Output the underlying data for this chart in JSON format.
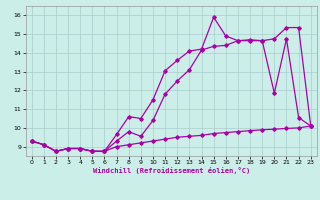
{
  "xlabel": "Windchill (Refroidissement éolien,°C)",
  "x_ticks": [
    0,
    1,
    2,
    3,
    4,
    5,
    6,
    7,
    8,
    9,
    10,
    11,
    12,
    13,
    14,
    15,
    16,
    17,
    18,
    19,
    20,
    21,
    22,
    23
  ],
  "xlim": [
    -0.5,
    23.5
  ],
  "ylim": [
    8.5,
    16.5
  ],
  "y_ticks": [
    9,
    10,
    11,
    12,
    13,
    14,
    15,
    16
  ],
  "bg_color": "#cceee8",
  "line_color": "#aa00aa",
  "grid_color": "#aacccc",
  "line1_x": [
    0,
    1,
    2,
    3,
    4,
    5,
    6,
    7,
    8,
    9,
    10,
    11,
    12,
    13,
    14,
    15,
    16,
    17,
    18,
    19,
    20,
    21,
    22,
    23
  ],
  "line1_y": [
    9.3,
    9.1,
    8.75,
    8.9,
    8.9,
    8.75,
    8.75,
    9.3,
    9.8,
    9.55,
    10.4,
    11.8,
    12.5,
    13.1,
    14.15,
    14.35,
    14.4,
    14.65,
    14.7,
    14.65,
    14.75,
    15.35,
    15.35,
    10.1
  ],
  "line2_x": [
    0,
    1,
    2,
    3,
    4,
    5,
    6,
    7,
    8,
    9,
    10,
    11,
    12,
    13,
    14,
    15,
    16,
    17,
    18,
    19,
    20,
    21,
    22,
    23
  ],
  "line2_y": [
    9.3,
    9.1,
    8.75,
    8.9,
    8.9,
    8.75,
    8.75,
    9.65,
    10.6,
    10.5,
    11.5,
    13.05,
    13.6,
    14.1,
    14.2,
    15.9,
    14.9,
    14.65,
    14.65,
    14.65,
    11.85,
    14.75,
    10.55,
    10.1
  ],
  "line3_x": [
    0,
    1,
    2,
    3,
    4,
    5,
    6,
    7,
    8,
    9,
    10,
    11,
    12,
    13,
    14,
    15,
    16,
    17,
    18,
    19,
    20,
    21,
    22,
    23
  ],
  "line3_y": [
    9.3,
    9.1,
    8.75,
    8.9,
    8.9,
    8.75,
    8.75,
    9.0,
    9.1,
    9.2,
    9.3,
    9.4,
    9.5,
    9.55,
    9.6,
    9.7,
    9.75,
    9.8,
    9.85,
    9.9,
    9.93,
    9.97,
    10.0,
    10.1
  ]
}
